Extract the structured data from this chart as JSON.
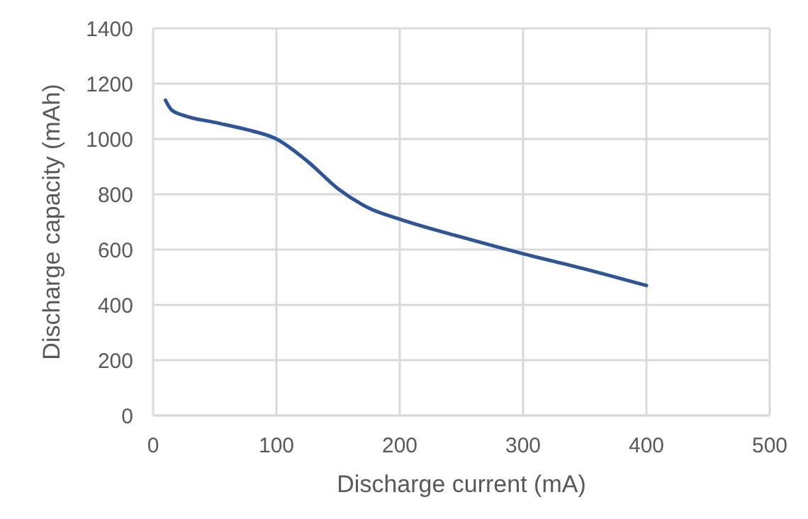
{
  "chart_data": {
    "type": "line",
    "xlabel": "Discharge current (mA)",
    "ylabel": "Discharge capacity (mAh)",
    "xlim": [
      0,
      500
    ],
    "xticks": [
      0,
      100,
      200,
      300,
      400,
      500
    ],
    "ylim": [
      0,
      1400
    ],
    "yticks": [
      0,
      200,
      400,
      600,
      800,
      1000,
      1200,
      1400
    ],
    "grid": true,
    "series": [
      {
        "color": "#2f5597",
        "x": [
          10,
          15,
          25,
          50,
          75,
          100,
          125,
          150,
          175,
          200,
          250,
          300,
          350,
          400
        ],
        "values": [
          1140,
          1105,
          1085,
          1060,
          1035,
          1000,
          920,
          820,
          750,
          710,
          645,
          585,
          530,
          470
        ]
      }
    ]
  }
}
